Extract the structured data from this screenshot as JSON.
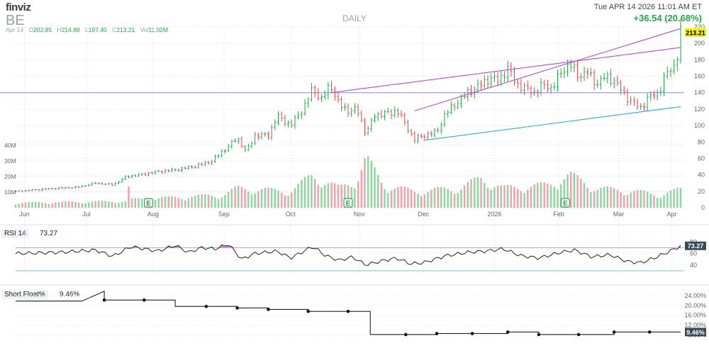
{
  "header": {
    "logo": "finviz",
    "ticker": "BE",
    "period": "DAILY",
    "datetime": "Tue APR 14 2026 11:01 AM ET",
    "change": "+36.54 (20.68%)"
  },
  "ohlc": {
    "date": "Apr 14",
    "o_label": "O",
    "o": "202.85",
    "h_label": "H",
    "h": "214.88",
    "l_label": "L",
    "l": "197.40",
    "c_label": "C",
    "c": "213.21",
    "vol_label": "Vol",
    "vol": "11.02M"
  },
  "colors": {
    "up": "#22a84a",
    "down": "#e04a4a",
    "vol_up": "#8fd3a0",
    "vol_down": "#f0a0a8",
    "trendline_purple": "#b44fd2",
    "trendline_cyan": "#29a8d6",
    "horizontal_line": "#8c8cd6",
    "price_tag": "#f2f200",
    "rsi_fill": "#c77ddb"
  },
  "chart_data": [
    {
      "type": "candlestick",
      "title": "",
      "ylim": [
        0,
        220
      ],
      "y_ticks": [
        0,
        20,
        40,
        60,
        80,
        100,
        120,
        140,
        160,
        180,
        200,
        220
      ],
      "x_ticks": [
        "Jun",
        "Jul",
        "Aug",
        "Sep",
        "Oct",
        "Nov",
        "Dec",
        "2026",
        "Feb",
        "Mar",
        "Apr"
      ],
      "volume_ticks": [
        "10M",
        "20M",
        "30M",
        "40M"
      ],
      "last_price": "213.21",
      "earnings_marker": "E",
      "horizontal_line": 140,
      "grid": true,
      "close_anchors": [
        {
          "d": 0,
          "c": 20
        },
        {
          "d": 10,
          "c": 22
        },
        {
          "d": 20,
          "c": 24
        },
        {
          "d": 28,
          "c": 25
        },
        {
          "d": 36,
          "c": 30
        },
        {
          "d": 44,
          "c": 28
        },
        {
          "d": 50,
          "c": 38
        },
        {
          "d": 56,
          "c": 40
        },
        {
          "d": 64,
          "c": 44
        },
        {
          "d": 72,
          "c": 46
        },
        {
          "d": 80,
          "c": 50
        },
        {
          "d": 88,
          "c": 56
        },
        {
          "d": 94,
          "c": 70
        },
        {
          "d": 100,
          "c": 85
        },
        {
          "d": 104,
          "c": 68
        },
        {
          "d": 108,
          "c": 88
        },
        {
          "d": 114,
          "c": 88
        },
        {
          "d": 118,
          "c": 112
        },
        {
          "d": 124,
          "c": 100
        },
        {
          "d": 130,
          "c": 122
        },
        {
          "d": 134,
          "c": 145
        },
        {
          "d": 138,
          "c": 132
        },
        {
          "d": 142,
          "c": 150
        },
        {
          "d": 146,
          "c": 125
        },
        {
          "d": 150,
          "c": 118
        },
        {
          "d": 154,
          "c": 120
        },
        {
          "d": 158,
          "c": 90
        },
        {
          "d": 162,
          "c": 112
        },
        {
          "d": 166,
          "c": 115
        },
        {
          "d": 170,
          "c": 115
        },
        {
          "d": 172,
          "c": 120
        },
        {
          "d": 176,
          "c": 100
        },
        {
          "d": 180,
          "c": 83
        },
        {
          "d": 184,
          "c": 88
        },
        {
          "d": 190,
          "c": 92
        },
        {
          "d": 194,
          "c": 115
        },
        {
          "d": 200,
          "c": 130
        },
        {
          "d": 204,
          "c": 140
        },
        {
          "d": 210,
          "c": 150
        },
        {
          "d": 214,
          "c": 158
        },
        {
          "d": 218,
          "c": 155
        },
        {
          "d": 222,
          "c": 170
        },
        {
          "d": 226,
          "c": 150
        },
        {
          "d": 230,
          "c": 145
        },
        {
          "d": 234,
          "c": 140
        },
        {
          "d": 238,
          "c": 150
        },
        {
          "d": 242,
          "c": 145
        },
        {
          "d": 246,
          "c": 165
        },
        {
          "d": 250,
          "c": 175
        },
        {
          "d": 254,
          "c": 160
        },
        {
          "d": 258,
          "c": 165
        },
        {
          "d": 262,
          "c": 150
        },
        {
          "d": 266,
          "c": 160
        },
        {
          "d": 270,
          "c": 155
        },
        {
          "d": 274,
          "c": 140
        },
        {
          "d": 278,
          "c": 128
        },
        {
          "d": 282,
          "c": 122
        },
        {
          "d": 286,
          "c": 135
        },
        {
          "d": 290,
          "c": 140
        },
        {
          "d": 294,
          "c": 165
        },
        {
          "d": 298,
          "c": 175
        },
        {
          "d": 300,
          "c": 213
        }
      ],
      "volume_anchors": [
        {
          "d": 0,
          "v": 3
        },
        {
          "d": 50,
          "v": 4
        },
        {
          "d": 51,
          "v": 12
        },
        {
          "d": 52,
          "v": 5
        },
        {
          "d": 94,
          "v": 8
        },
        {
          "d": 100,
          "v": 12
        },
        {
          "d": 124,
          "v": 10
        },
        {
          "d": 134,
          "v": 20
        },
        {
          "d": 146,
          "v": 12
        },
        {
          "d": 154,
          "v": 18
        },
        {
          "d": 158,
          "v": 30
        },
        {
          "d": 166,
          "v": 14
        },
        {
          "d": 180,
          "v": 10
        },
        {
          "d": 200,
          "v": 12
        },
        {
          "d": 210,
          "v": 18
        },
        {
          "d": 220,
          "v": 12
        },
        {
          "d": 240,
          "v": 14
        },
        {
          "d": 250,
          "v": 20
        },
        {
          "d": 262,
          "v": 12
        },
        {
          "d": 280,
          "v": 10
        },
        {
          "d": 290,
          "v": 8
        },
        {
          "d": 300,
          "v": 11
        }
      ],
      "trendlines": [
        {
          "color": "purple",
          "from": {
            "d": 142,
            "c": 140
          },
          "to": {
            "d": 300,
            "c": 195
          }
        },
        {
          "color": "purple",
          "from": {
            "d": 180,
            "c": 118
          },
          "to": {
            "d": 300,
            "c": 218
          }
        },
        {
          "color": "cyan",
          "from": {
            "d": 184,
            "c": 82
          },
          "to": {
            "d": 300,
            "c": 123
          }
        }
      ]
    },
    {
      "type": "line",
      "name": "RSI 14",
      "value": "73.27",
      "ylim": [
        20,
        100
      ],
      "y_ticks": [
        40,
        60,
        80
      ],
      "overbought": 70,
      "oversold": 30,
      "anchors": [
        {
          "d": 0,
          "v": 60
        },
        {
          "d": 20,
          "v": 62
        },
        {
          "d": 36,
          "v": 66
        },
        {
          "d": 44,
          "v": 55
        },
        {
          "d": 52,
          "v": 72
        },
        {
          "d": 58,
          "v": 68
        },
        {
          "d": 64,
          "v": 64
        },
        {
          "d": 72,
          "v": 74
        },
        {
          "d": 78,
          "v": 62
        },
        {
          "d": 84,
          "v": 70
        },
        {
          "d": 90,
          "v": 68
        },
        {
          "d": 96,
          "v": 76
        },
        {
          "d": 102,
          "v": 50
        },
        {
          "d": 108,
          "v": 60
        },
        {
          "d": 118,
          "v": 64
        },
        {
          "d": 124,
          "v": 52
        },
        {
          "d": 128,
          "v": 60
        },
        {
          "d": 134,
          "v": 72
        },
        {
          "d": 140,
          "v": 56
        },
        {
          "d": 146,
          "v": 48
        },
        {
          "d": 152,
          "v": 54
        },
        {
          "d": 158,
          "v": 40
        },
        {
          "d": 166,
          "v": 48
        },
        {
          "d": 172,
          "v": 52
        },
        {
          "d": 178,
          "v": 42
        },
        {
          "d": 184,
          "v": 44
        },
        {
          "d": 194,
          "v": 56
        },
        {
          "d": 204,
          "v": 62
        },
        {
          "d": 212,
          "v": 64
        },
        {
          "d": 220,
          "v": 68
        },
        {
          "d": 228,
          "v": 56
        },
        {
          "d": 236,
          "v": 52
        },
        {
          "d": 246,
          "v": 62
        },
        {
          "d": 252,
          "v": 66
        },
        {
          "d": 260,
          "v": 54
        },
        {
          "d": 268,
          "v": 58
        },
        {
          "d": 276,
          "v": 46
        },
        {
          "d": 282,
          "v": 44
        },
        {
          "d": 288,
          "v": 52
        },
        {
          "d": 294,
          "v": 62
        },
        {
          "d": 300,
          "v": 73
        }
      ]
    },
    {
      "type": "step",
      "name": "Short Float%",
      "value": "9.46%",
      "ylim": [
        7,
        26
      ],
      "y_ticks": [
        "8.00%",
        "12.00%",
        "16.00%",
        "20.00%",
        "24.00%"
      ],
      "points": [
        {
          "d": 0,
          "v": 21.8
        },
        {
          "d": 30,
          "v": 21.8
        },
        {
          "d": 40,
          "v": 25.8
        },
        {
          "d": 40,
          "v": 22.2
        },
        {
          "d": 58,
          "v": 22.2
        },
        {
          "d": 72,
          "v": 22.2
        },
        {
          "d": 72,
          "v": 19.6
        },
        {
          "d": 86,
          "v": 19.6
        },
        {
          "d": 100,
          "v": 19.6
        },
        {
          "d": 100,
          "v": 19.0
        },
        {
          "d": 114,
          "v": 19.0
        },
        {
          "d": 114,
          "v": 18.4
        },
        {
          "d": 132,
          "v": 18.4
        },
        {
          "d": 132,
          "v": 17.6
        },
        {
          "d": 150,
          "v": 17.6
        },
        {
          "d": 160,
          "v": 17.6
        },
        {
          "d": 160,
          "v": 8.2
        },
        {
          "d": 176,
          "v": 8.2
        },
        {
          "d": 190,
          "v": 8.2
        },
        {
          "d": 190,
          "v": 8.6
        },
        {
          "d": 206,
          "v": 8.6
        },
        {
          "d": 222,
          "v": 8.6
        },
        {
          "d": 222,
          "v": 9.2
        },
        {
          "d": 236,
          "v": 9.2
        },
        {
          "d": 236,
          "v": 8.2
        },
        {
          "d": 254,
          "v": 8.2
        },
        {
          "d": 270,
          "v": 8.2
        },
        {
          "d": 270,
          "v": 9.2
        },
        {
          "d": 286,
          "v": 9.2
        },
        {
          "d": 300,
          "v": 9.2
        }
      ],
      "markers": [
        40,
        58,
        86,
        100,
        114,
        132,
        150,
        176,
        190,
        206,
        222,
        236,
        254,
        270,
        286
      ]
    }
  ]
}
